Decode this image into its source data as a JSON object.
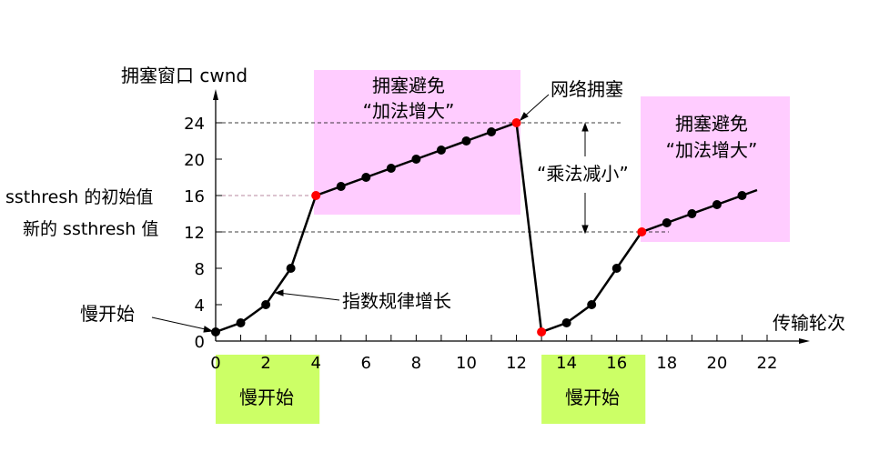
{
  "chart_data": {
    "type": "line",
    "ylabel": "拥塞窗口 cwnd",
    "xlabel": "传输轮次",
    "xlim": [
      0,
      22
    ],
    "ylim": [
      0,
      24
    ],
    "x_ticks": [
      0,
      2,
      4,
      6,
      8,
      10,
      12,
      14,
      16,
      18,
      20,
      22
    ],
    "y_ticks": [
      0,
      4,
      8,
      12,
      16,
      20,
      24
    ],
    "grid": false,
    "series": [
      {
        "x": [
          0,
          1,
          2,
          3,
          4,
          5,
          6,
          7,
          8,
          9,
          10,
          11,
          12,
          13,
          14,
          15,
          16,
          17,
          18,
          19,
          20,
          21
        ],
        "y": [
          1,
          2,
          4,
          8,
          16,
          17,
          18,
          19,
          20,
          21,
          22,
          23,
          24,
          1,
          2,
          4,
          8,
          12,
          13,
          14,
          15,
          16
        ],
        "highlighted_points_x": [
          4,
          12,
          13,
          17
        ],
        "line_extends_to": [
          21.6,
          16.6
        ]
      }
    ],
    "reference_lines": [
      {
        "y": 24
      },
      {
        "y": 16,
        "label": "ssthresh 的初始值"
      },
      {
        "y": 12,
        "label": "新的 ssthresh 值"
      }
    ],
    "regions": [
      {
        "kind": "congestion-avoidance",
        "label_line1": "拥塞避免",
        "label_line2": "“加法增大”",
        "color": "#ffccff"
      },
      {
        "kind": "congestion-avoidance",
        "label_line1": "拥塞避免",
        "label_line2": "“加法增大”",
        "color": "#ffccff"
      },
      {
        "kind": "slow-start",
        "label": "慢开始",
        "color": "#ccff66",
        "x_range": [
          0,
          4
        ]
      },
      {
        "kind": "slow-start",
        "label": "慢开始",
        "color": "#ccff66",
        "x_range": [
          13,
          17
        ]
      }
    ],
    "annotations": {
      "congestion": "网络拥塞",
      "multiplicative_decrease": "“乘法减小”",
      "exponential_growth": "指数规律增长",
      "slow_start": "慢开始"
    },
    "colors": {
      "line": "#000000",
      "point": "#000000",
      "highlight": "#ff0000",
      "avoid_box": "#ffccff",
      "slow_box": "#ccff66"
    }
  }
}
